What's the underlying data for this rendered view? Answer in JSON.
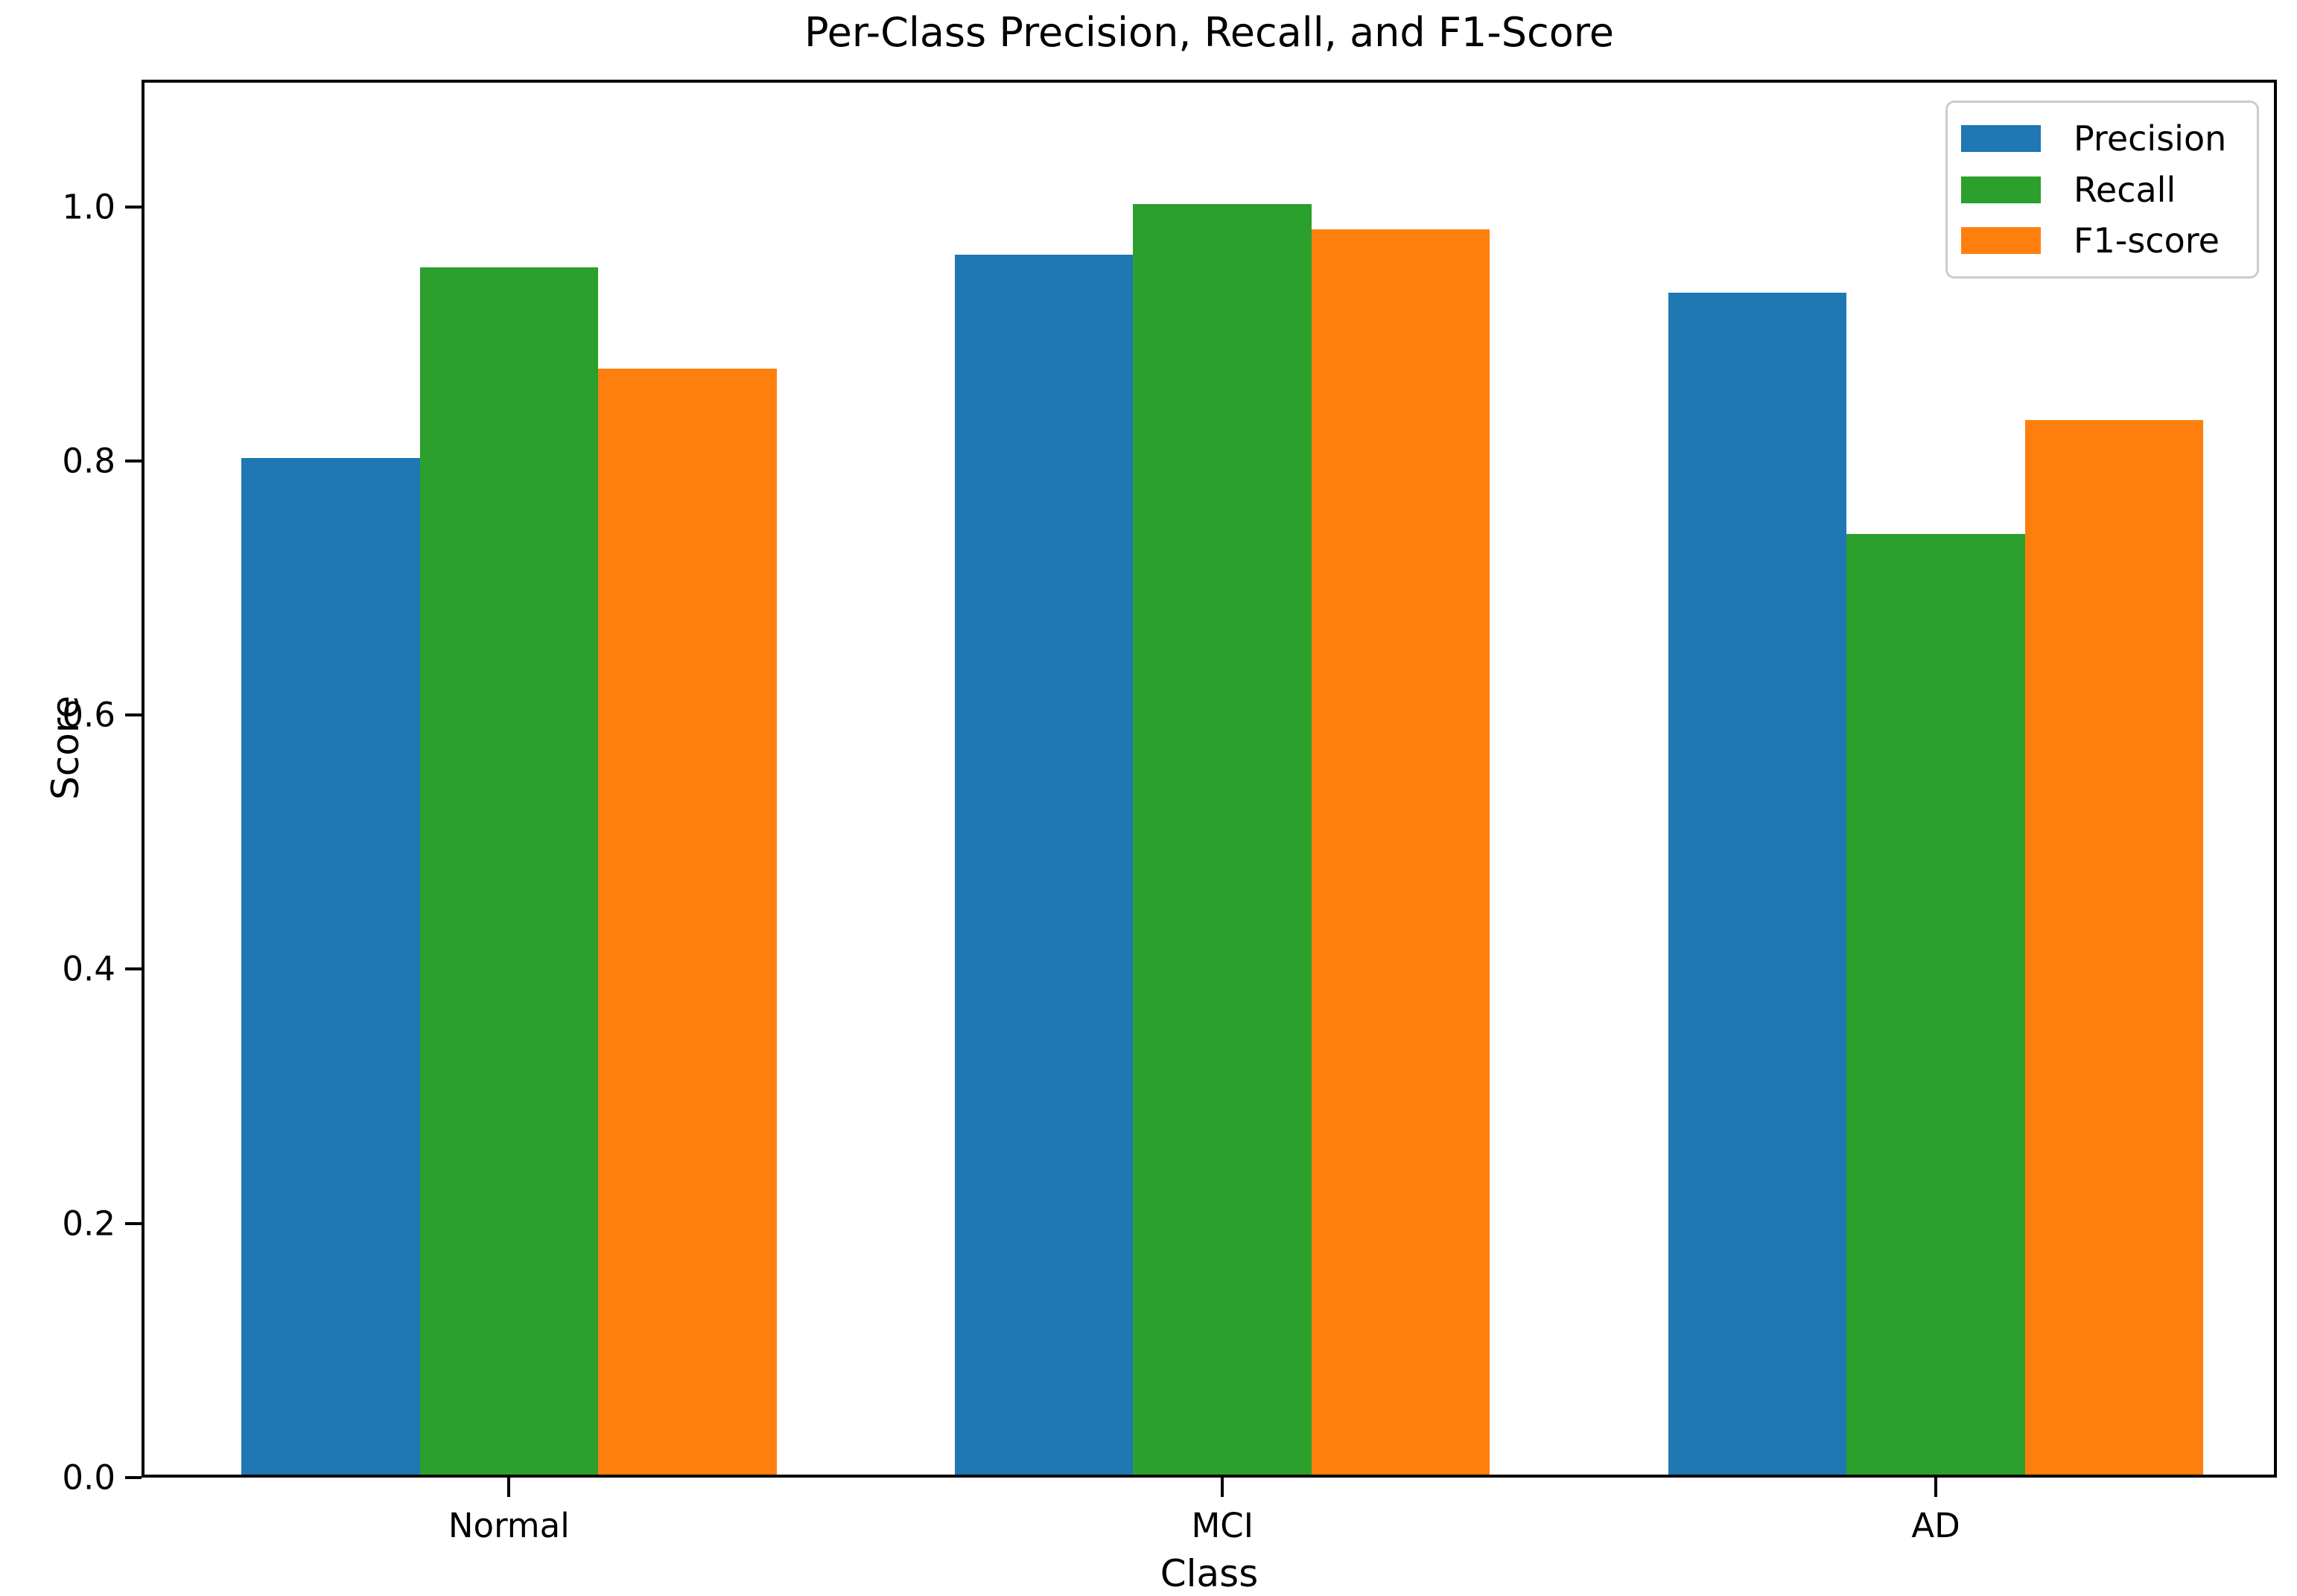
{
  "chart_data": {
    "type": "bar",
    "title": "Per-Class Precision, Recall, and F1-Score",
    "xlabel": "Class",
    "ylabel": "Score",
    "categories": [
      "Normal",
      "MCI",
      "AD"
    ],
    "series": [
      {
        "name": "Precision",
        "color": "#1f77b4",
        "values": [
          0.8,
          0.96,
          0.93
        ]
      },
      {
        "name": "Recall",
        "color": "#2ca02c",
        "values": [
          0.95,
          1.0,
          0.74
        ]
      },
      {
        "name": "F1-score",
        "color": "#ff7f0e",
        "values": [
          0.87,
          0.98,
          0.83
        ]
      }
    ],
    "ylim": [
      0,
      1.1
    ],
    "yticks": [
      0.0,
      0.2,
      0.4,
      0.6,
      0.8,
      1.0
    ],
    "ytick_labels": [
      "0.0",
      "0.2",
      "0.4",
      "0.6",
      "0.8",
      "1.0"
    ],
    "xtick_labels": [
      "Normal",
      "MCI",
      "AD"
    ],
    "grid": false,
    "bar_width": 0.25,
    "legend": {
      "position": "upper right",
      "entries": [
        "Precision",
        "Recall",
        "F1-score"
      ]
    }
  },
  "colors": {
    "background": "#ffffff",
    "spine": "#000000",
    "text": "#000000",
    "legend_border": "#cccccc"
  }
}
